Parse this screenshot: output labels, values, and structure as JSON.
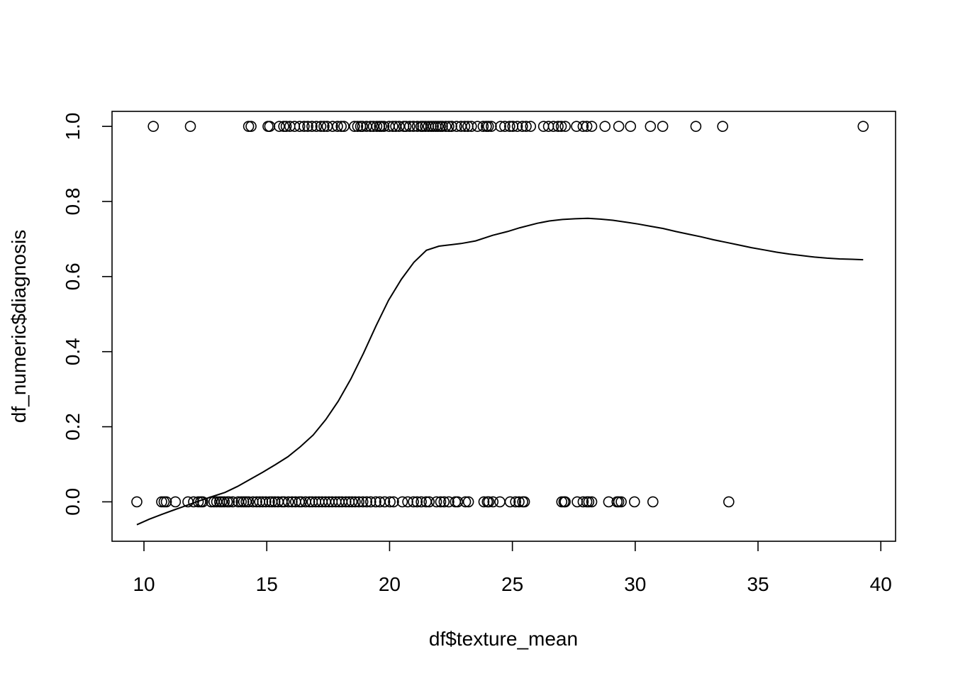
{
  "chart_data": {
    "type": "scatter",
    "title": "",
    "xlabel": "df$texture_mean",
    "ylabel": "df_numeric$diagnosis",
    "xlim": [
      8.7,
      40.6
    ],
    "ylim": [
      -0.105,
      1.04
    ],
    "xticks": [
      10,
      15,
      20,
      25,
      30,
      35,
      40
    ],
    "yticks": [
      0.0,
      0.2,
      0.4,
      0.6,
      0.8,
      1.0
    ],
    "xtick_labels": [
      "10",
      "15",
      "20",
      "25",
      "30",
      "35",
      "40"
    ],
    "ytick_labels": [
      "0.0",
      "0.2",
      "0.4",
      "0.6",
      "0.8",
      "1.0"
    ],
    "grid": false,
    "series": [
      {
        "x": [
          10.38,
          11.89,
          14.26,
          14.36,
          15.05,
          15.12,
          15.51,
          15.69,
          15.79,
          15.94,
          16.13,
          16.34,
          16.52,
          16.67,
          16.84,
          17.02,
          17.2,
          17.33,
          17.46,
          17.68,
          17.88,
          18.03,
          18.14,
          18.57,
          18.7,
          18.82,
          18.9,
          19.06,
          19.22,
          19.34,
          19.48,
          19.59,
          19.67,
          19.77,
          19.98,
          20.13,
          20.25,
          20.39,
          20.58,
          20.67,
          20.82,
          20.97,
          21.13,
          21.28,
          21.35,
          21.46,
          21.58,
          21.69,
          21.78,
          21.88,
          21.97,
          22.07,
          22.15,
          22.29,
          22.41,
          22.53,
          22.73,
          22.91,
          23.06,
          23.19,
          23.33,
          23.58,
          23.81,
          23.94,
          24.02,
          24.14,
          24.52,
          24.69,
          24.89,
          25.02,
          25.2,
          25.41,
          25.56,
          25.74,
          26.27,
          26.47,
          26.67,
          26.86,
          26.99,
          27.15,
          27.61,
          27.88,
          28.03,
          28.23,
          28.77,
          29.33,
          29.81,
          30.62,
          31.12,
          32.47,
          33.56,
          39.28
        ],
        "y": [
          1,
          1,
          1,
          1,
          1,
          1,
          1,
          1,
          1,
          1,
          1,
          1,
          1,
          1,
          1,
          1,
          1,
          1,
          1,
          1,
          1,
          1,
          1,
          1,
          1,
          1,
          1,
          1,
          1,
          1,
          1,
          1,
          1,
          1,
          1,
          1,
          1,
          1,
          1,
          1,
          1,
          1,
          1,
          1,
          1,
          1,
          1,
          1,
          1,
          1,
          1,
          1,
          1,
          1,
          1,
          1,
          1,
          1,
          1,
          1,
          1,
          1,
          1,
          1,
          1,
          1,
          1,
          1,
          1,
          1,
          1,
          1,
          1,
          1,
          1,
          1,
          1,
          1,
          1,
          1,
          1,
          1,
          1,
          1,
          1,
          1,
          1,
          1,
          1,
          1,
          1,
          1
        ]
      },
      {
        "x": [
          9.71,
          10.72,
          10.82,
          10.91,
          11.28,
          11.79,
          12.02,
          12.21,
          12.31,
          12.39,
          12.74,
          12.85,
          12.96,
          13.08,
          13.17,
          13.27,
          13.39,
          13.47,
          13.61,
          13.84,
          13.96,
          14.06,
          14.16,
          14.26,
          14.44,
          14.59,
          14.71,
          14.83,
          14.96,
          15.11,
          15.21,
          15.33,
          15.46,
          15.62,
          15.71,
          15.88,
          16.03,
          16.17,
          16.32,
          16.41,
          16.58,
          16.74,
          16.85,
          16.99,
          17.12,
          17.25,
          17.39,
          17.53,
          17.66,
          17.81,
          17.94,
          18.06,
          18.22,
          18.35,
          18.47,
          18.6,
          18.75,
          18.91,
          19.07,
          19.23,
          19.44,
          19.6,
          19.8,
          20.02,
          20.16,
          20.52,
          20.74,
          20.97,
          21.12,
          21.29,
          21.49,
          21.61,
          21.91,
          22.08,
          22.22,
          22.41,
          22.68,
          22.77,
          23.09,
          23.21,
          23.84,
          23.98,
          24.04,
          24.21,
          24.49,
          24.91,
          25.13,
          25.27,
          25.42,
          25.49,
          27.01,
          27.1,
          27.15,
          27.64,
          27.88,
          28.03,
          28.11,
          28.23,
          28.92,
          29.26,
          29.33,
          29.43,
          29.97,
          30.72,
          33.81
        ],
        "y": [
          0,
          0,
          0,
          0,
          0,
          0,
          0,
          0,
          0,
          0,
          0,
          0,
          0,
          0,
          0,
          0,
          0,
          0,
          0,
          0,
          0,
          0,
          0,
          0,
          0,
          0,
          0,
          0,
          0,
          0,
          0,
          0,
          0,
          0,
          0,
          0,
          0,
          0,
          0,
          0,
          0,
          0,
          0,
          0,
          0,
          0,
          0,
          0,
          0,
          0,
          0,
          0,
          0,
          0,
          0,
          0,
          0,
          0,
          0,
          0,
          0,
          0,
          0,
          0,
          0,
          0,
          0,
          0,
          0,
          0,
          0,
          0,
          0,
          0,
          0,
          0,
          0,
          0,
          0,
          0,
          0,
          0,
          0,
          0,
          0,
          0,
          0,
          0,
          0,
          0,
          0,
          0,
          0,
          0,
          0,
          0,
          0,
          0,
          0,
          0,
          0,
          0,
          0,
          0,
          0
        ]
      }
    ],
    "fitted_line": {
      "x": [
        9.71,
        10.22,
        10.74,
        11.25,
        11.76,
        12.27,
        12.78,
        13.3,
        13.81,
        14.32,
        14.84,
        15.35,
        15.86,
        16.37,
        16.89,
        17.4,
        17.91,
        18.42,
        18.94,
        19.45,
        19.96,
        20.48,
        20.99,
        21.5,
        22.01,
        22.4,
        22.91,
        23.5,
        24.2,
        24.8,
        25.3,
        26.02,
        26.5,
        27.04,
        27.55,
        28.07,
        28.58,
        29.09,
        29.61,
        30.12,
        30.63,
        31.14,
        31.66,
        32.17,
        32.68,
        33.19,
        33.71,
        34.22,
        34.73,
        35.25,
        35.76,
        36.27,
        36.78,
        37.3,
        37.81,
        38.32,
        38.83,
        39.28
      ],
      "y": [
        -0.061,
        -0.046,
        -0.033,
        -0.021,
        -0.009,
        0.003,
        0.014,
        0.025,
        0.041,
        0.06,
        0.079,
        0.099,
        0.12,
        0.147,
        0.178,
        0.219,
        0.268,
        0.327,
        0.396,
        0.469,
        0.537,
        0.593,
        0.638,
        0.67,
        0.681,
        0.684,
        0.688,
        0.695,
        0.71,
        0.72,
        0.73,
        0.742,
        0.748,
        0.752,
        0.754,
        0.755,
        0.753,
        0.75,
        0.745,
        0.74,
        0.734,
        0.728,
        0.72,
        0.713,
        0.706,
        0.698,
        0.691,
        0.684,
        0.677,
        0.671,
        0.665,
        0.66,
        0.656,
        0.652,
        0.649,
        0.647,
        0.646,
        0.645
      ]
    }
  }
}
